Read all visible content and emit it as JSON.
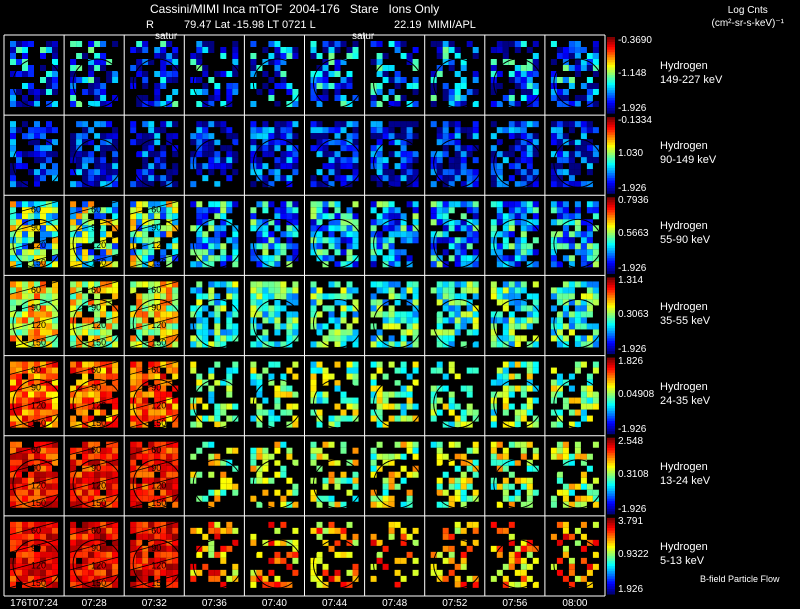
{
  "header": {
    "title": "Cassini/MIMI Inca mTOF  2004-176   Stare   Ions Only",
    "subtitle_left": "R",
    "subtitle_mid": "79.47 Lat -15.98 LT 0721 L",
    "subtitle_right": "22.19  MIMI/APL",
    "unit_line1": "Log Cnts",
    "unit_line2": "(cm²-sr-s-keV)⁻¹",
    "annot_1": "satur",
    "annot_2": "satur",
    "footer_note": "B-field Particle Flow"
  },
  "chart_data": {
    "type": "heatmap",
    "x_times": [
      "176T07:24",
      "07:28",
      "07:32",
      "07:36",
      "07:40",
      "07:44",
      "07:48",
      "07:52",
      "07:56",
      "08:00"
    ],
    "rows": [
      {
        "species": "Hydrogen",
        "energy": "149-227 keV",
        "cb_max": "-0.3690",
        "cb_mid": "-1.148",
        "cb_min": "-1.926"
      },
      {
        "species": "Hydrogen",
        "energy": "90-149 keV",
        "cb_max": "-0.1334",
        "cb_mid": "1.030",
        "cb_min": "-1.926"
      },
      {
        "species": "Hydrogen",
        "energy": "55-90 keV",
        "cb_max": "0.7936",
        "cb_mid": "0.5663",
        "cb_min": "-1.926"
      },
      {
        "species": "Hydrogen",
        "energy": "35-55 keV",
        "cb_max": "1.314",
        "cb_mid": "0.3063",
        "cb_min": "-1.926"
      },
      {
        "species": "Hydrogen",
        "energy": "24-35 keV",
        "cb_max": "1.826",
        "cb_mid": "0.04908",
        "cb_min": "-1.926"
      },
      {
        "species": "Hydrogen",
        "energy": "13-24 keV",
        "cb_max": "2.548",
        "cb_mid": "0.3108",
        "cb_min": "-1.926"
      },
      {
        "species": "Hydrogen",
        "energy": "5-13 keV",
        "cb_max": "3.791",
        "cb_mid": "0.9322",
        "cb_min": "1.926"
      }
    ],
    "contour_labels": [
      "60",
      "90",
      "120",
      "150"
    ]
  }
}
